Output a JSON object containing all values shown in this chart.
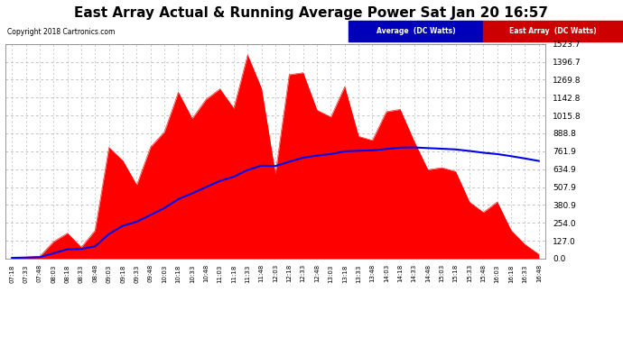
{
  "title": "East Array Actual & Running Average Power Sat Jan 20 16:57",
  "copyright": "Copyright 2018 Cartronics.com",
  "legend_avg_label": "Average  (DC Watts)",
  "legend_east_label": "East Array  (DC Watts)",
  "yticks": [
    0.0,
    127.0,
    254.0,
    380.9,
    507.9,
    634.9,
    761.9,
    888.8,
    1015.8,
    1142.8,
    1269.8,
    1396.7,
    1523.7
  ],
  "ymax": 1523.7,
  "bar_color": "#ff0000",
  "line_color": "#0000ee",
  "plot_bg": "#ffffff",
  "fig_bg": "#ffffff",
  "grid_color": "#aaaaaa",
  "legend_avg_bg": "#0000bb",
  "legend_east_bg": "#cc0000",
  "title_fontsize": 11,
  "copyright_fontsize": 5.5,
  "yticklabel_fontsize": 6.5,
  "xticklabel_fontsize": 5.0
}
